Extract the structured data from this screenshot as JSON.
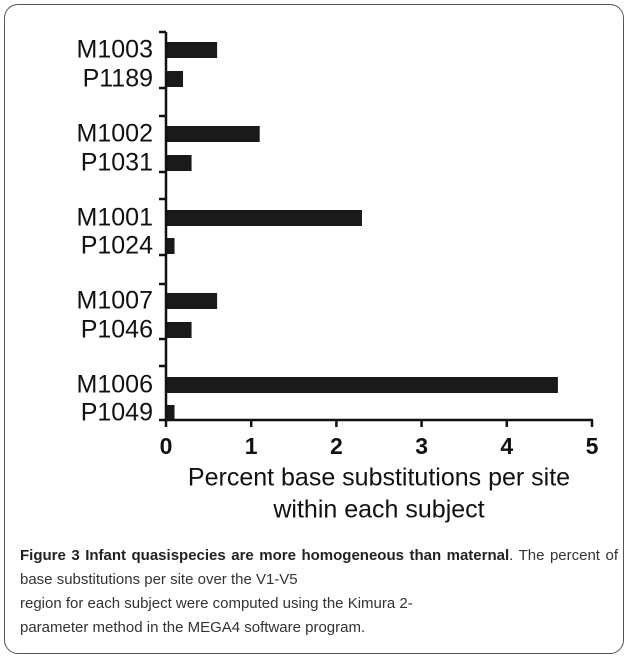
{
  "chart_data": {
    "type": "bar",
    "orientation": "horizontal",
    "categories": [
      "M1003",
      "P1189",
      "M1002",
      "P1031",
      "M1001",
      "P1024",
      "M1007",
      "P1046",
      "M1006",
      "P1049"
    ],
    "values": [
      0.6,
      0.2,
      1.1,
      0.3,
      2.3,
      0.1,
      0.6,
      0.3,
      4.6,
      0.1
    ],
    "xlabel": "Percent base substitutions per site within each subject",
    "xlabel_lines": [
      "Percent base substitutions per site",
      "within each subject"
    ],
    "xlim": [
      0,
      5
    ],
    "xticks": [
      "0",
      "1",
      "2",
      "3",
      "4",
      "5"
    ],
    "grid": false,
    "bar_color": "#1a1a1a"
  },
  "caption": {
    "heading": "Figure 3 Infant quasispecies are more homogeneous than maternal",
    "heading_end": ".",
    "body_lines": [
      "The percent of base substitutions per site over the V1-V5",
      "region for each subject were computed using the Kimura 2-",
      "parameter method in the MEGA4 software program."
    ]
  }
}
